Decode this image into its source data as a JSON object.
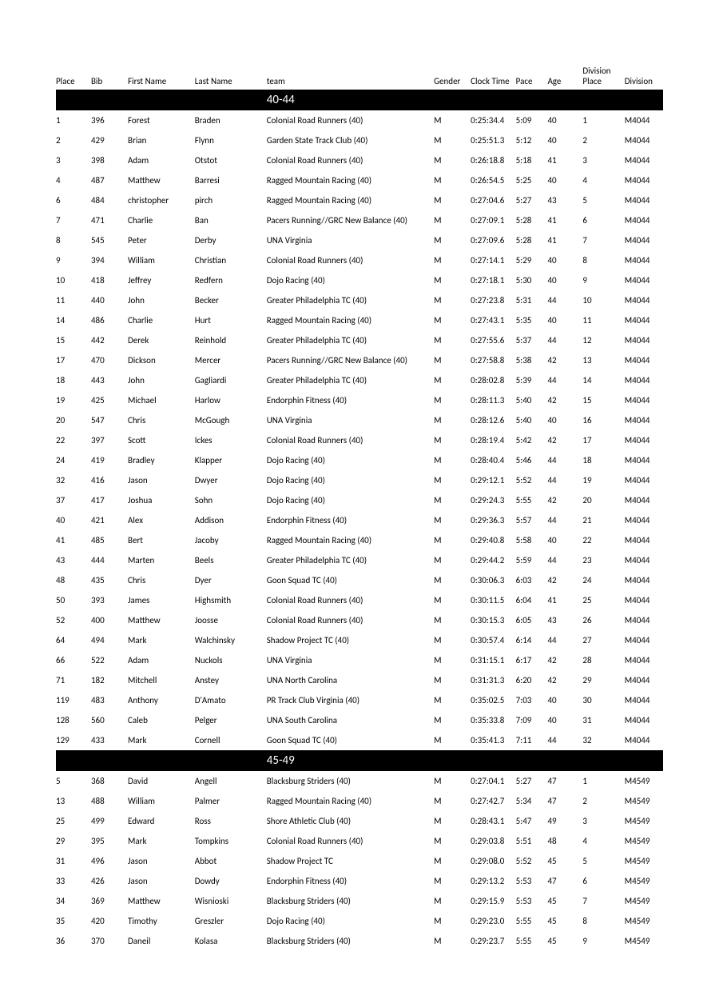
{
  "table": {
    "headers": {
      "place": "Place",
      "bib": "Bib",
      "firstName": "First Name",
      "lastName": "Last Name",
      "team": "team",
      "gender": "Gender",
      "clockTime": "Clock Time",
      "pace": "Pace",
      "age": "Age",
      "divPlace": "Division Place",
      "division": "Division"
    },
    "sections": [
      {
        "label": "40-44",
        "rows": [
          {
            "place": "1",
            "bib": "396",
            "first": "Forest",
            "last": "Braden",
            "team": "Colonial Road Runners (40)",
            "gender": "M",
            "clock": "0:25:34.4",
            "pace": "5:09",
            "age": "40",
            "dplace": "1",
            "div": "M4044"
          },
          {
            "place": "2",
            "bib": "429",
            "first": "Brian",
            "last": "Flynn",
            "team": "Garden State Track Club (40)",
            "gender": "M",
            "clock": "0:25:51.3",
            "pace": "5:12",
            "age": "40",
            "dplace": "2",
            "div": "M4044"
          },
          {
            "place": "3",
            "bib": "398",
            "first": "Adam",
            "last": "Otstot",
            "team": "Colonial Road Runners (40)",
            "gender": "M",
            "clock": "0:26:18.8",
            "pace": "5:18",
            "age": "41",
            "dplace": "3",
            "div": "M4044"
          },
          {
            "place": "4",
            "bib": "487",
            "first": "Matthew",
            "last": "Barresi",
            "team": "Ragged Mountain Racing (40)",
            "gender": "M",
            "clock": "0:26:54.5",
            "pace": "5:25",
            "age": "40",
            "dplace": "4",
            "div": "M4044"
          },
          {
            "place": "6",
            "bib": "484",
            "first": "christopher",
            "last": "pirch",
            "team": "Ragged Mountain Racing (40)",
            "gender": "M",
            "clock": "0:27:04.6",
            "pace": "5:27",
            "age": "43",
            "dplace": "5",
            "div": "M4044"
          },
          {
            "place": "7",
            "bib": "471",
            "first": "Charlie",
            "last": "Ban",
            "team": "Pacers Running//GRC New Balance (40)",
            "gender": "M",
            "clock": "0:27:09.1",
            "pace": "5:28",
            "age": "41",
            "dplace": "6",
            "div": "M4044"
          },
          {
            "place": "8",
            "bib": "545",
            "first": "Peter",
            "last": "Derby",
            "team": "UNA Virginia",
            "gender": "M",
            "clock": "0:27:09.6",
            "pace": "5:28",
            "age": "41",
            "dplace": "7",
            "div": "M4044"
          },
          {
            "place": "9",
            "bib": "394",
            "first": "William",
            "last": "Christian",
            "team": "Colonial Road Runners (40)",
            "gender": "M",
            "clock": "0:27:14.1",
            "pace": "5:29",
            "age": "40",
            "dplace": "8",
            "div": "M4044"
          },
          {
            "place": "10",
            "bib": "418",
            "first": "Jeffrey",
            "last": "Redfern",
            "team": "Dojo Racing (40)",
            "gender": "M",
            "clock": "0:27:18.1",
            "pace": "5:30",
            "age": "40",
            "dplace": "9",
            "div": "M4044"
          },
          {
            "place": "11",
            "bib": "440",
            "first": "John",
            "last": "Becker",
            "team": "Greater Philadelphia TC (40)",
            "gender": "M",
            "clock": "0:27:23.8",
            "pace": "5:31",
            "age": "44",
            "dplace": "10",
            "div": "M4044"
          },
          {
            "place": "14",
            "bib": "486",
            "first": "Charlie",
            "last": "Hurt",
            "team": "Ragged Mountain Racing (40)",
            "gender": "M",
            "clock": "0:27:43.1",
            "pace": "5:35",
            "age": "40",
            "dplace": "11",
            "div": "M4044"
          },
          {
            "place": "15",
            "bib": "442",
            "first": "Derek",
            "last": "Reinhold",
            "team": "Greater Philadelphia TC (40)",
            "gender": "M",
            "clock": "0:27:55.6",
            "pace": "5:37",
            "age": "44",
            "dplace": "12",
            "div": "M4044"
          },
          {
            "place": "17",
            "bib": "470",
            "first": "Dickson",
            "last": "Mercer",
            "team": "Pacers Running//GRC New Balance (40)",
            "gender": "M",
            "clock": "0:27:58.8",
            "pace": "5:38",
            "age": "42",
            "dplace": "13",
            "div": "M4044"
          },
          {
            "place": "18",
            "bib": "443",
            "first": "John",
            "last": "Gagliardi",
            "team": "Greater Philadelphia TC (40)",
            "gender": "M",
            "clock": "0:28:02.8",
            "pace": "5:39",
            "age": "44",
            "dplace": "14",
            "div": "M4044"
          },
          {
            "place": "19",
            "bib": "425",
            "first": "Michael",
            "last": "Harlow",
            "team": "Endorphin Fitness (40)",
            "gender": "M",
            "clock": "0:28:11.3",
            "pace": "5:40",
            "age": "42",
            "dplace": "15",
            "div": "M4044"
          },
          {
            "place": "20",
            "bib": "547",
            "first": "Chris",
            "last": "McGough",
            "team": "UNA Virginia",
            "gender": "M",
            "clock": "0:28:12.6",
            "pace": "5:40",
            "age": "40",
            "dplace": "16",
            "div": "M4044"
          },
          {
            "place": "22",
            "bib": "397",
            "first": "Scott",
            "last": "Ickes",
            "team": "Colonial Road Runners (40)",
            "gender": "M",
            "clock": "0:28:19.4",
            "pace": "5:42",
            "age": "42",
            "dplace": "17",
            "div": "M4044"
          },
          {
            "place": "24",
            "bib": "419",
            "first": "Bradley",
            "last": "Klapper",
            "team": "Dojo Racing (40)",
            "gender": "M",
            "clock": "0:28:40.4",
            "pace": "5:46",
            "age": "44",
            "dplace": "18",
            "div": "M4044"
          },
          {
            "place": "32",
            "bib": "416",
            "first": "Jason",
            "last": "Dwyer",
            "team": "Dojo Racing (40)",
            "gender": "M",
            "clock": "0:29:12.1",
            "pace": "5:52",
            "age": "44",
            "dplace": "19",
            "div": "M4044"
          },
          {
            "place": "37",
            "bib": "417",
            "first": "Joshua",
            "last": "Sohn",
            "team": "Dojo Racing (40)",
            "gender": "M",
            "clock": "0:29:24.3",
            "pace": "5:55",
            "age": "42",
            "dplace": "20",
            "div": "M4044"
          },
          {
            "place": "40",
            "bib": "421",
            "first": "Alex",
            "last": "Addison",
            "team": "Endorphin Fitness (40)",
            "gender": "M",
            "clock": "0:29:36.3",
            "pace": "5:57",
            "age": "44",
            "dplace": "21",
            "div": "M4044"
          },
          {
            "place": "41",
            "bib": "485",
            "first": "Bert",
            "last": "Jacoby",
            "team": "Ragged Mountain Racing (40)",
            "gender": "M",
            "clock": "0:29:40.8",
            "pace": "5:58",
            "age": "40",
            "dplace": "22",
            "div": "M4044"
          },
          {
            "place": "43",
            "bib": "444",
            "first": "Marten",
            "last": "Beels",
            "team": "Greater Philadelphia TC (40)",
            "gender": "M",
            "clock": "0:29:44.2",
            "pace": "5:59",
            "age": "44",
            "dplace": "23",
            "div": "M4044"
          },
          {
            "place": "48",
            "bib": "435",
            "first": "Chris",
            "last": "Dyer",
            "team": "Goon Squad TC (40)",
            "gender": "M",
            "clock": "0:30:06.3",
            "pace": "6:03",
            "age": "42",
            "dplace": "24",
            "div": "M4044"
          },
          {
            "place": "50",
            "bib": "393",
            "first": "James",
            "last": "Highsmith",
            "team": "Colonial Road Runners (40)",
            "gender": "M",
            "clock": "0:30:11.5",
            "pace": "6:04",
            "age": "41",
            "dplace": "25",
            "div": "M4044"
          },
          {
            "place": "52",
            "bib": "400",
            "first": "Matthew",
            "last": "Joosse",
            "team": "Colonial Road Runners (40)",
            "gender": "M",
            "clock": "0:30:15.3",
            "pace": "6:05",
            "age": "43",
            "dplace": "26",
            "div": "M4044"
          },
          {
            "place": "64",
            "bib": "494",
            "first": "Mark",
            "last": "Walchinsky",
            "team": "Shadow Project TC (40)",
            "gender": "M",
            "clock": "0:30:57.4",
            "pace": "6:14",
            "age": "44",
            "dplace": "27",
            "div": "M4044"
          },
          {
            "place": "66",
            "bib": "522",
            "first": "Adam",
            "last": "Nuckols",
            "team": "UNA Virginia",
            "gender": "M",
            "clock": "0:31:15.1",
            "pace": "6:17",
            "age": "42",
            "dplace": "28",
            "div": "M4044"
          },
          {
            "place": "71",
            "bib": "182",
            "first": "Mitchell",
            "last": "Anstey",
            "team": "UNA North Carolina",
            "gender": "M",
            "clock": "0:31:31.3",
            "pace": "6:20",
            "age": "42",
            "dplace": "29",
            "div": "M4044"
          },
          {
            "place": "119",
            "bib": "483",
            "first": "Anthony",
            "last": "D'Amato",
            "team": "PR Track Club Virginia (40)",
            "gender": "M",
            "clock": "0:35:02.5",
            "pace": "7:03",
            "age": "40",
            "dplace": "30",
            "div": "M4044"
          },
          {
            "place": "128",
            "bib": "560",
            "first": "Caleb",
            "last": "Pelger",
            "team": "UNA South Carolina",
            "gender": "M",
            "clock": "0:35:33.8",
            "pace": "7:09",
            "age": "40",
            "dplace": "31",
            "div": "M4044"
          },
          {
            "place": "129",
            "bib": "433",
            "first": "Mark",
            "last": "Cornell",
            "team": "Goon Squad TC (40)",
            "gender": "M",
            "clock": "0:35:41.3",
            "pace": "7:11",
            "age": "44",
            "dplace": "32",
            "div": "M4044"
          }
        ]
      },
      {
        "label": "45-49",
        "rows": [
          {
            "place": "5",
            "bib": "368",
            "first": "David",
            "last": "Angell",
            "team": "Blacksburg Striders (40)",
            "gender": "M",
            "clock": "0:27:04.1",
            "pace": "5:27",
            "age": "47",
            "dplace": "1",
            "div": "M4549"
          },
          {
            "place": "13",
            "bib": "488",
            "first": "William",
            "last": "Palmer",
            "team": "Ragged Mountain Racing (40)",
            "gender": "M",
            "clock": "0:27:42.7",
            "pace": "5:34",
            "age": "47",
            "dplace": "2",
            "div": "M4549"
          },
          {
            "place": "25",
            "bib": "499",
            "first": "Edward",
            "last": "Ross",
            "team": "Shore Athletic Club (40)",
            "gender": "M",
            "clock": "0:28:43.1",
            "pace": "5:47",
            "age": "49",
            "dplace": "3",
            "div": "M4549"
          },
          {
            "place": "29",
            "bib": "395",
            "first": "Mark",
            "last": "Tompkins",
            "team": "Colonial Road Runners (40)",
            "gender": "M",
            "clock": "0:29:03.8",
            "pace": "5:51",
            "age": "48",
            "dplace": "4",
            "div": "M4549"
          },
          {
            "place": "31",
            "bib": "496",
            "first": "Jason",
            "last": "Abbot",
            "team": "Shadow Project TC",
            "gender": "M",
            "clock": "0:29:08.0",
            "pace": "5:52",
            "age": "45",
            "dplace": "5",
            "div": "M4549"
          },
          {
            "place": "33",
            "bib": "426",
            "first": "Jason",
            "last": "Dowdy",
            "team": "Endorphin Fitness (40)",
            "gender": "M",
            "clock": "0:29:13.2",
            "pace": "5:53",
            "age": "47",
            "dplace": "6",
            "div": "M4549"
          },
          {
            "place": "34",
            "bib": "369",
            "first": "Matthew",
            "last": "Wisnioski",
            "team": "Blacksburg Striders (40)",
            "gender": "M",
            "clock": "0:29:15.9",
            "pace": "5:53",
            "age": "45",
            "dplace": "7",
            "div": "M4549"
          },
          {
            "place": "35",
            "bib": "420",
            "first": "Timothy",
            "last": "Greszler",
            "team": "Dojo Racing (40)",
            "gender": "M",
            "clock": "0:29:23.0",
            "pace": "5:55",
            "age": "45",
            "dplace": "8",
            "div": "M4549"
          },
          {
            "place": "36",
            "bib": "370",
            "first": "Daneil",
            "last": "Kolasa",
            "team": "Blacksburg Striders (40)",
            "gender": "M",
            "clock": "0:29:23.7",
            "pace": "5:55",
            "age": "45",
            "dplace": "9",
            "div": "M4549"
          }
        ]
      }
    ]
  }
}
